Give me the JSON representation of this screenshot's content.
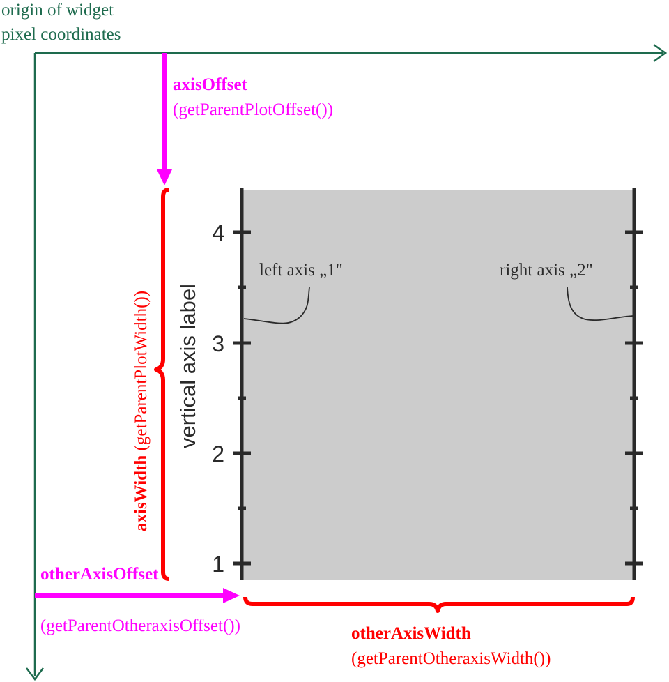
{
  "colors": {
    "green": "#1e6b4e",
    "magenta": "#ff00ff",
    "red": "#ff0000",
    "axis": "#2a2a2a",
    "plot_bg": "#cccccc"
  },
  "origin": {
    "line1": "origin of widget",
    "line2": "pixel coordinates"
  },
  "axisOffset": {
    "name": "axisOffset",
    "getter": "(getParentPlotOffset())"
  },
  "axisWidth": {
    "name": "axisWidth",
    "getter": "(getParentPlotWidth())"
  },
  "otherAxisOffset": {
    "name": "otherAxisOffset",
    "getter": "(getParentOtheraxisOffset())"
  },
  "otherAxisWidth": {
    "name": "otherAxisWidth",
    "getter": "(getParentOtheraxisWidth())"
  },
  "plot": {
    "vertical_label": "vertical axis label",
    "left_axis_label": "left axis „1\"",
    "right_axis_label": "right axis „2\"",
    "tick_labels": [
      "1",
      "2",
      "3",
      "4"
    ]
  }
}
